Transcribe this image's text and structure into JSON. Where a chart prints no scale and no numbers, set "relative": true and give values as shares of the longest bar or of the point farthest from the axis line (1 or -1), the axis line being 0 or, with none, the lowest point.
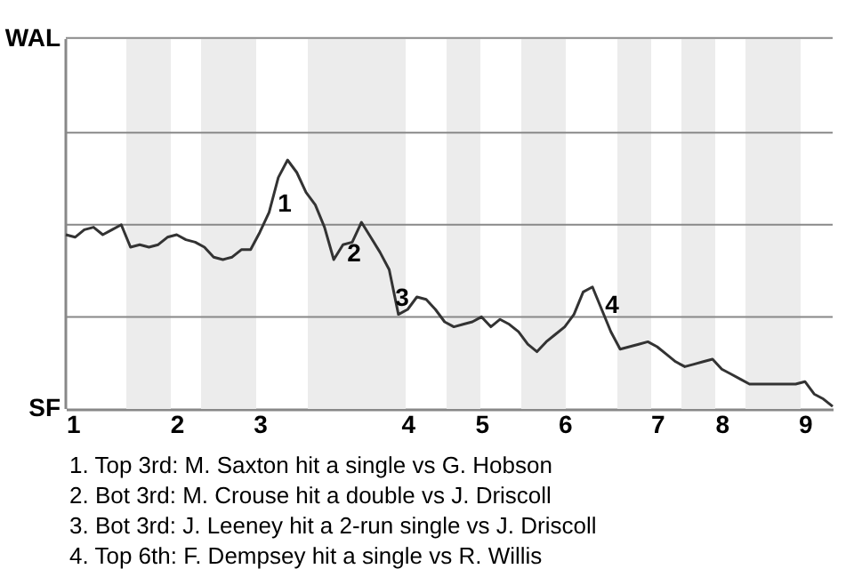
{
  "chart_data": {
    "type": "line",
    "relative": true,
    "categories": [
      "1",
      null,
      null,
      null,
      null,
      null,
      null,
      null,
      null,
      null,
      null,
      null,
      "2",
      null,
      null,
      null,
      null,
      null,
      null,
      null,
      null,
      "3",
      null,
      null,
      null,
      null,
      null,
      null,
      null,
      null,
      null,
      null,
      null,
      null,
      null,
      null,
      null,
      "4",
      null,
      null,
      null,
      null,
      null,
      null,
      null,
      "5",
      null,
      null,
      null,
      null,
      null,
      null,
      null,
      null,
      "6",
      null,
      null,
      null,
      null,
      null,
      null,
      null,
      null,
      null,
      "7",
      null,
      null,
      null,
      null,
      null,
      null,
      "8",
      null,
      null,
      null,
      null,
      null,
      null,
      null,
      null,
      "9",
      null,
      null,
      null
    ],
    "series": [
      {
        "color": "#333333",
        "values": [
          0.7,
          0.69,
          0.72,
          0.73,
          0.7,
          0.72,
          0.74,
          0.65,
          0.66,
          0.65,
          0.66,
          0.69,
          0.7,
          0.68,
          0.67,
          0.65,
          0.61,
          0.6,
          0.61,
          0.64,
          0.64,
          0.71,
          0.79,
          0.93,
          1,
          0.95,
          0.87,
          0.82,
          0.73,
          0.6,
          0.66,
          0.67,
          0.75,
          0.69,
          0.63,
          0.56,
          0.38,
          0.4,
          0.45,
          0.44,
          0.4,
          0.35,
          0.33,
          0.34,
          0.35,
          0.37,
          0.33,
          0.36,
          0.34,
          0.31,
          0.26,
          0.23,
          0.27,
          0.3,
          0.33,
          0.38,
          0.47,
          0.49,
          0.4,
          0.31,
          0.24,
          0.25,
          0.26,
          0.27,
          0.25,
          0.22,
          0.19,
          0.17,
          0.18,
          0.19,
          0.2,
          0.16,
          0.14,
          0.12,
          0.1,
          0.1,
          0.1,
          0.1,
          0.1,
          0.1,
          0.11,
          0.06,
          0.04,
          0.01
        ]
      }
    ],
    "marker": "none",
    "line_style": "solid",
    "ref_lines": [
      {
        "axis": "y",
        "value": 0.37,
        "color": "#888888"
      },
      {
        "axis": "y",
        "value": 0.74,
        "color": "#888888"
      },
      {
        "axis": "y",
        "value": 1.11,
        "color": "#888888"
      },
      {
        "axis": "y",
        "value": 1.49,
        "color": "#888888"
      }
    ],
    "annotations": [
      "WAL",
      "SF",
      "1",
      "2",
      "3",
      "4",
      "1. Top 3rd: M. Saxton hit a single vs G. Hobson",
      "2. Bot 3rd: M. Crouse hit a double vs J. Driscoll",
      "3. Bot 3rd: J. Leeney hit a 2-run single vs J. Driscoll",
      "4. Top 6th: F. Dempsey hit a single vs R. Willis"
    ]
  }
}
